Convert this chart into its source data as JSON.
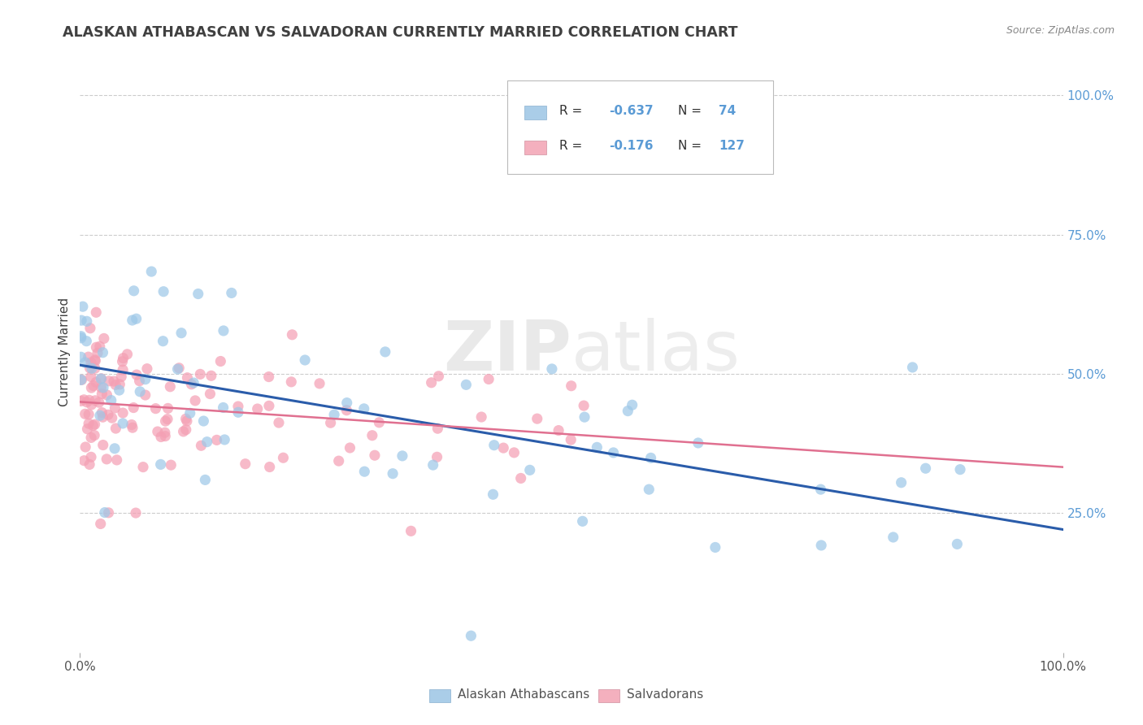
{
  "title": "ALASKAN ATHABASCAN VS SALVADORAN CURRENTLY MARRIED CORRELATION CHART",
  "source": "Source: ZipAtlas.com",
  "ylabel": "Currently Married",
  "watermark_zip": "ZIP",
  "watermark_atlas": "atlas",
  "legend_blue_R": -0.637,
  "legend_blue_N": 74,
  "legend_pink_R": -0.176,
  "legend_pink_N": 127,
  "blue_scatter_color": "#9ec8e8",
  "pink_scatter_color": "#f4a0b4",
  "blue_line_color": "#2a5caa",
  "pink_line_color": "#e07090",
  "blue_legend_color": "#aacde8",
  "pink_legend_color": "#f4b0be",
  "right_tick_color": "#5b9bd5",
  "grid_color": "#cccccc",
  "background_color": "#ffffff",
  "title_color": "#404040",
  "source_color": "#888888",
  "tick_label_color": "#555555",
  "xlim": [
    0,
    1
  ],
  "ylim": [
    0,
    1.08
  ]
}
